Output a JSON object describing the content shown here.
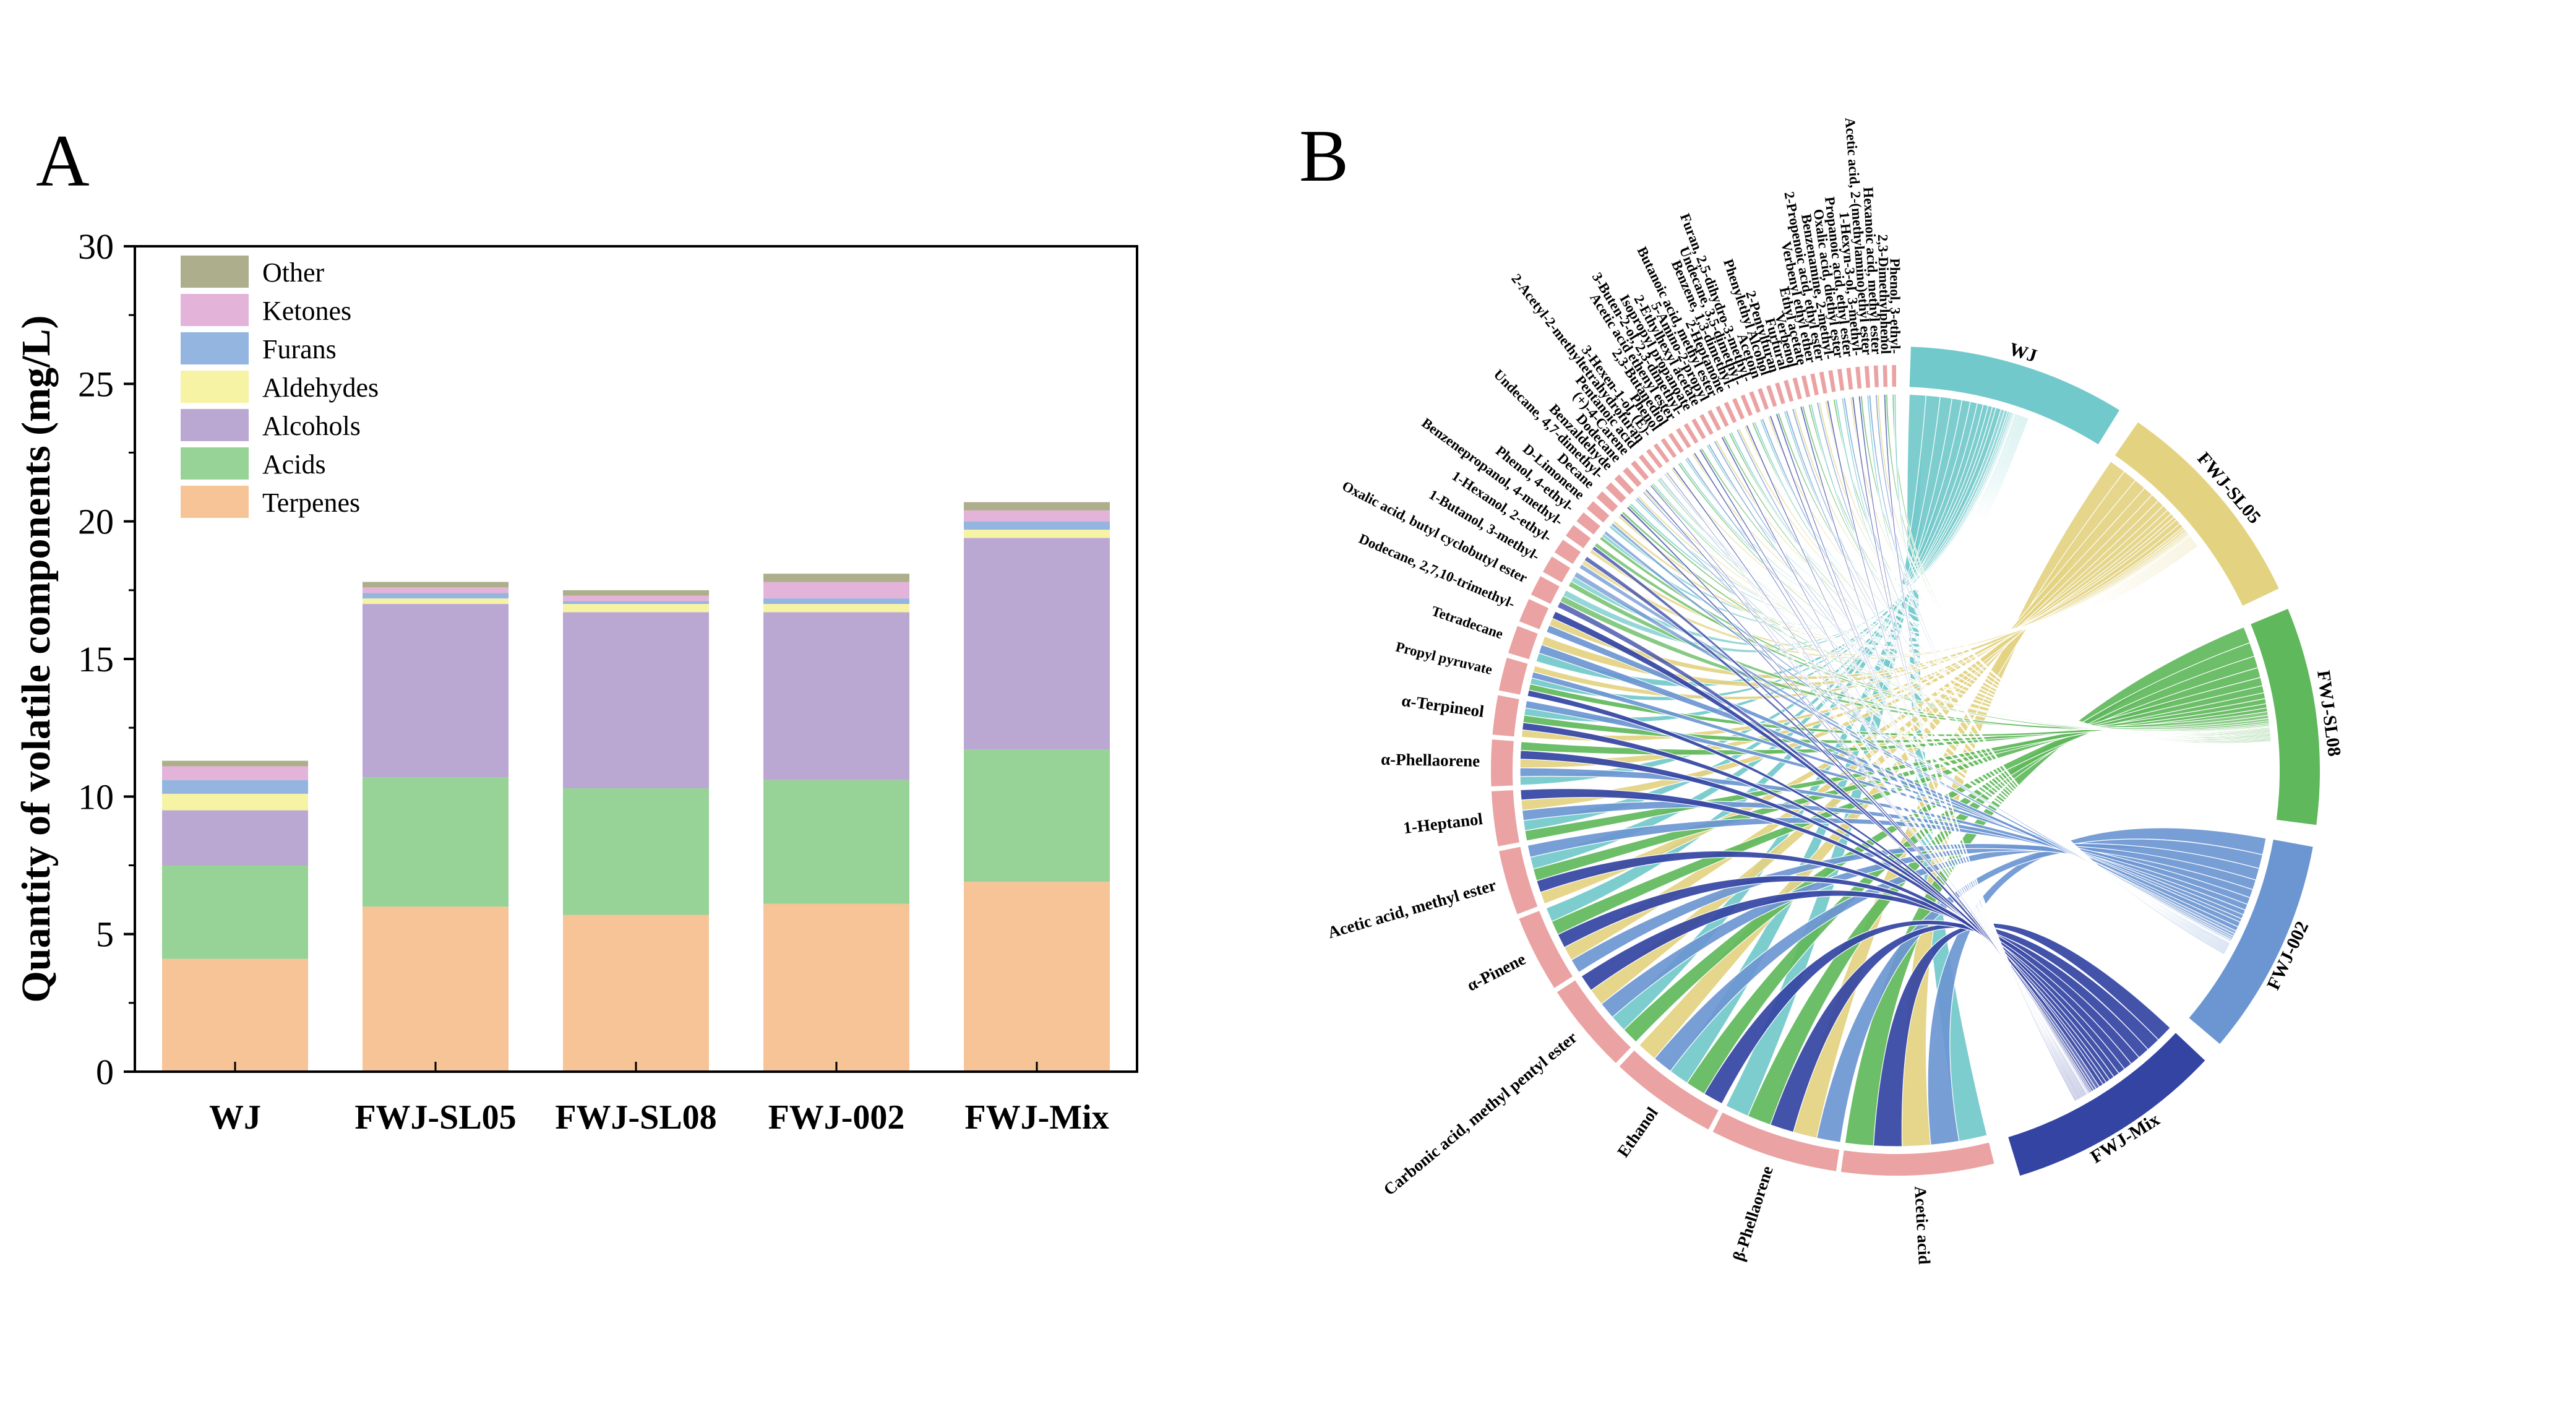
{
  "chart_data": [
    {
      "type": "bar",
      "stacked": true,
      "panel_label": "A",
      "ylabel": "Quantity of volatile components (mg/L)",
      "xlabel": "",
      "ylim": [
        0,
        30
      ],
      "yticks": [
        0,
        5,
        10,
        15,
        20,
        25,
        30
      ],
      "categories": [
        "WJ",
        "FWJ-SL05",
        "FWJ-SL08",
        "FWJ-002",
        "FWJ-Mix"
      ],
      "legend_position": "top-left",
      "series": [
        {
          "name": "Terpenes",
          "color": "#F6C497",
          "values": [
            4.1,
            6.0,
            5.7,
            6.1,
            6.9
          ]
        },
        {
          "name": "Acids",
          "color": "#97D296",
          "values": [
            3.4,
            4.7,
            4.6,
            4.5,
            4.8
          ]
        },
        {
          "name": "Alcohols",
          "color": "#BAA8D2",
          "values": [
            2.0,
            6.3,
            6.4,
            6.1,
            7.7
          ]
        },
        {
          "name": "Aldehydes",
          "color": "#F7F3A4",
          "values": [
            0.6,
            0.2,
            0.3,
            0.3,
            0.3
          ]
        },
        {
          "name": "Furans",
          "color": "#93B5E0",
          "values": [
            0.5,
            0.2,
            0.1,
            0.2,
            0.3
          ]
        },
        {
          "name": "Ketones",
          "color": "#E3B3D9",
          "values": [
            0.5,
            0.2,
            0.2,
            0.6,
            0.4
          ]
        },
        {
          "name": "Other",
          "color": "#ADAE8C",
          "values": [
            0.2,
            0.2,
            0.2,
            0.3,
            0.3
          ]
        }
      ]
    },
    {
      "type": "chord",
      "panel_label": "B",
      "groups": [
        {
          "name": "WJ",
          "color": "#72C9CB"
        },
        {
          "name": "FWJ-SL05",
          "color": "#E3D381"
        },
        {
          "name": "FWJ-SL08",
          "color": "#5FB85B"
        },
        {
          "name": "FWJ-002",
          "color": "#6C96D2"
        },
        {
          "name": "FWJ-Mix",
          "color": "#3444A3"
        }
      ],
      "compound_color": "#EBA2A2",
      "compounds": [
        "Acetic acid",
        "β-Phellaorene",
        "Ethanol",
        "Carbonic acid, methyl pentyl ester",
        "α-Pinene",
        "Acetic acid, methyl ester",
        "1-Heptanol",
        "α-Phellaorene",
        "α-Terpineol",
        "Propyl pyruvate",
        "Tetradecane",
        "Dodecane, 2,7,10-trimethyl-",
        "Oxalic acid, butyl cyclobutyl ester",
        "1-Butanol, 3-methyl-",
        "1-Hexanol, 2-ethyl-",
        "Benzenepropanol, 4-methyl-",
        "Phenol, 4-ethyl-",
        "D-Limonene",
        "Decane",
        "Undecane, 4,7-dimethyl-",
        "Benzaldehyde",
        "Dodecane",
        "(+)-4-Carene",
        "Pentanoic acid",
        "2-Acetyl-2-methyltetrahydrofuran",
        "3-Hexen-1-ol, (E)-",
        "Phenol",
        "2,3-Butanediol",
        "Acetic acid ethenyl ester",
        "3-Buten-2-ol, 2,3-dimethyl-",
        "Isopropyl propanoate",
        "2-Ethylhexyl acetate",
        "5-Amino-2-propyl",
        "Butanoic acid, methyl ester",
        "2-Heptanone",
        "Benzene, 1,3-dimethyl-",
        "Undecane, 3,5-dimethyl-",
        "Furan, 2,5-dihydro-3-methyl-",
        "Acetoin",
        "Phenylethyl Alcohol",
        "2-Pentylfuran",
        "Furfural",
        "Verbenol",
        "Ethyl acetate",
        "Verbenyl ethyl ether",
        "2-Propenoic acid, ethyl ester",
        "Benzenamine, 2-methyl-",
        "Oxalic acid, diethyl ester",
        "Propanoic acid, ethyl ester",
        "1-Hexyn-3-ol, 3-methyl-",
        "Acetic acid, 2-(methylamino)ethyl ester",
        "Hexanoic acid, methyl ester",
        "2,3-Dimethylphenol",
        "Phenol, 3-ethyl-"
      ]
    }
  ]
}
